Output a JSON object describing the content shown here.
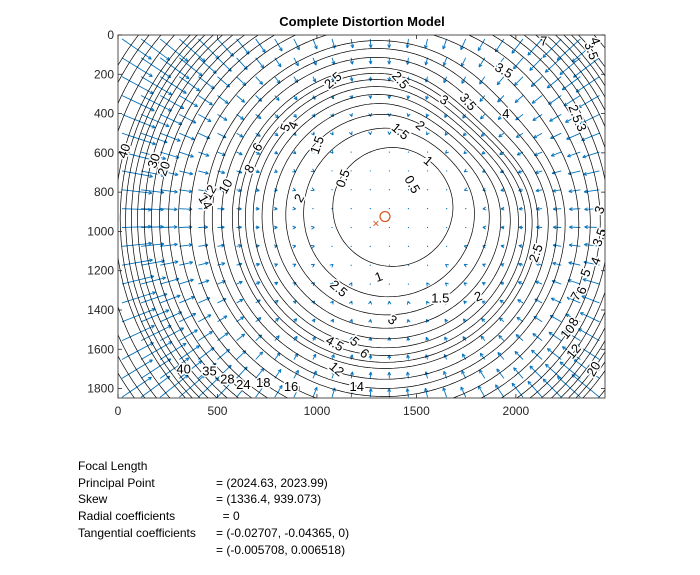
{
  "chart_data": {
    "type": "contour",
    "title": "Complete Distortion Model",
    "xlabel": "",
    "ylabel": "",
    "xlim": [
      0,
      2448
    ],
    "ylim": [
      1848,
      0
    ],
    "y_axis_direction": "reversed",
    "xticks": [
      0,
      500,
      1000,
      1500,
      2000
    ],
    "yticks": [
      0,
      200,
      400,
      600,
      800,
      1000,
      1200,
      1400,
      1600,
      1800
    ],
    "grid": false,
    "principal_point": [
      1336.4,
      939.073
    ],
    "image_center": [
      1312,
      965
    ],
    "contour_levels": [
      0.5,
      1,
      1.5,
      2,
      2.5,
      3,
      3.5,
      4,
      4.5,
      5,
      6,
      7,
      8,
      10,
      12,
      14,
      16,
      18,
      20,
      22,
      24,
      26,
      28,
      30,
      35,
      40,
      45,
      50
    ],
    "contour_labels": [
      {
        "text": "0.5",
        "x": 1130,
        "y": 730,
        "rot": -70
      },
      {
        "text": "0.5",
        "x": 1480,
        "y": 760,
        "rot": 60
      },
      {
        "text": "1",
        "x": 1560,
        "y": 640,
        "rot": 40
      },
      {
        "text": "1",
        "x": 1310,
        "y": 1230,
        "rot": -20
      },
      {
        "text": "1.5",
        "x": 1000,
        "y": 560,
        "rot": -70
      },
      {
        "text": "1.5",
        "x": 1420,
        "y": 490,
        "rot": 40
      },
      {
        "text": "1.5",
        "x": 1620,
        "y": 1340,
        "rot": 0
      },
      {
        "text": "2",
        "x": 910,
        "y": 830,
        "rot": -60
      },
      {
        "text": "2",
        "x": 1520,
        "y": 460,
        "rot": 40
      },
      {
        "text": "2",
        "x": 1810,
        "y": 1330,
        "rot": -20
      },
      {
        "text": "2.5",
        "x": 1080,
        "y": 230,
        "rot": -40
      },
      {
        "text": "2.5",
        "x": 1420,
        "y": 230,
        "rot": 50
      },
      {
        "text": "2.5",
        "x": 1110,
        "y": 1290,
        "rot": 40
      },
      {
        "text": "2.5",
        "x": 2100,
        "y": 1110,
        "rot": -70
      },
      {
        "text": "2.5",
        "x": 2300,
        "y": 400,
        "rot": 70
      },
      {
        "text": "3",
        "x": 1640,
        "y": 330,
        "rot": 30
      },
      {
        "text": "3",
        "x": 2420,
        "y": 890,
        "rot": -70
      },
      {
        "text": "3",
        "x": 2330,
        "y": 470,
        "rot": 70
      },
      {
        "text": "3",
        "x": 1380,
        "y": 1450,
        "rot": 40
      },
      {
        "text": "3.5",
        "x": 1940,
        "y": 180,
        "rot": 30
      },
      {
        "text": "3.5",
        "x": 1760,
        "y": 340,
        "rot": 50
      },
      {
        "text": "3.5",
        "x": 2420,
        "y": 1030,
        "rot": -70
      },
      {
        "text": "3.5",
        "x": 2380,
        "y": 80,
        "rot": 70
      },
      {
        "text": "4",
        "x": 1950,
        "y": 400,
        "rot": 0
      },
      {
        "text": "4",
        "x": 880,
        "y": 460,
        "rot": -70
      },
      {
        "text": "4",
        "x": 2400,
        "y": 1150,
        "rot": -70
      },
      {
        "text": "4",
        "x": 2400,
        "y": 30,
        "rot": 70
      },
      {
        "text": "4.5",
        "x": 1090,
        "y": 1570,
        "rot": 30
      },
      {
        "text": "5",
        "x": 840,
        "y": 470,
        "rot": -70
      },
      {
        "text": "5",
        "x": 1190,
        "y": 1560,
        "rot": 40
      },
      {
        "text": "5",
        "x": 2350,
        "y": 1210,
        "rot": -70
      },
      {
        "text": "6",
        "x": 700,
        "y": 570,
        "rot": -60
      },
      {
        "text": "6",
        "x": 2330,
        "y": 1300,
        "rot": -70
      },
      {
        "text": "6",
        "x": 1240,
        "y": 1620,
        "rot": 40
      },
      {
        "text": "7",
        "x": 2300,
        "y": 1330,
        "rot": -60
      },
      {
        "text": "7",
        "x": 2140,
        "y": 30,
        "rot": 0
      },
      {
        "text": "8",
        "x": 660,
        "y": 680,
        "rot": -60
      },
      {
        "text": "8",
        "x": 2290,
        "y": 1460,
        "rot": -60
      },
      {
        "text": "10",
        "x": 540,
        "y": 770,
        "rot": -60
      },
      {
        "text": "10",
        "x": 2260,
        "y": 1510,
        "rot": -50
      },
      {
        "text": "12",
        "x": 460,
        "y": 800,
        "rot": -60
      },
      {
        "text": "12",
        "x": 1100,
        "y": 1700,
        "rot": 40
      },
      {
        "text": "12",
        "x": 2290,
        "y": 1610,
        "rot": -50
      },
      {
        "text": "14",
        "x": 440,
        "y": 850,
        "rot": 60
      },
      {
        "text": "14",
        "x": 1200,
        "y": 1790,
        "rot": 0
      },
      {
        "text": "16",
        "x": 870,
        "y": 1790,
        "rot": 0
      },
      {
        "text": "18",
        "x": 730,
        "y": 1770,
        "rot": 0
      },
      {
        "text": "20",
        "x": 230,
        "y": 680,
        "rot": -70
      },
      {
        "text": "20",
        "x": 2390,
        "y": 1700,
        "rot": -60
      },
      {
        "text": "24",
        "x": 630,
        "y": 1780,
        "rot": 0
      },
      {
        "text": "28",
        "x": 550,
        "y": 1750,
        "rot": 0
      },
      {
        "text": "30",
        "x": 180,
        "y": 640,
        "rot": -70
      },
      {
        "text": "35",
        "x": 460,
        "y": 1710,
        "rot": 0
      },
      {
        "text": "40",
        "x": 30,
        "y": 590,
        "rot": -70
      },
      {
        "text": "40",
        "x": 330,
        "y": 1700,
        "rot": 0
      }
    ]
  },
  "info": {
    "focal_length": {
      "label": "Focal Length",
      "value": "= (2024.63, 2023.99)"
    },
    "principal_point": {
      "label": "Principal Point",
      "value": "= (1336.4, 939.073)"
    },
    "skew": {
      "label": "Skew",
      "value": "  = 0"
    },
    "radial": {
      "label": "Radial coefficients",
      "value": "= (-0.02707, -0.04365, 0)"
    },
    "tangential": {
      "label": "Tangential coefficients",
      "value": "= (-0.005708, 0.006518)"
    }
  },
  "colors": {
    "contour": "#000000",
    "vector": "#0072bd",
    "principal_point_marker": "#d95319"
  }
}
